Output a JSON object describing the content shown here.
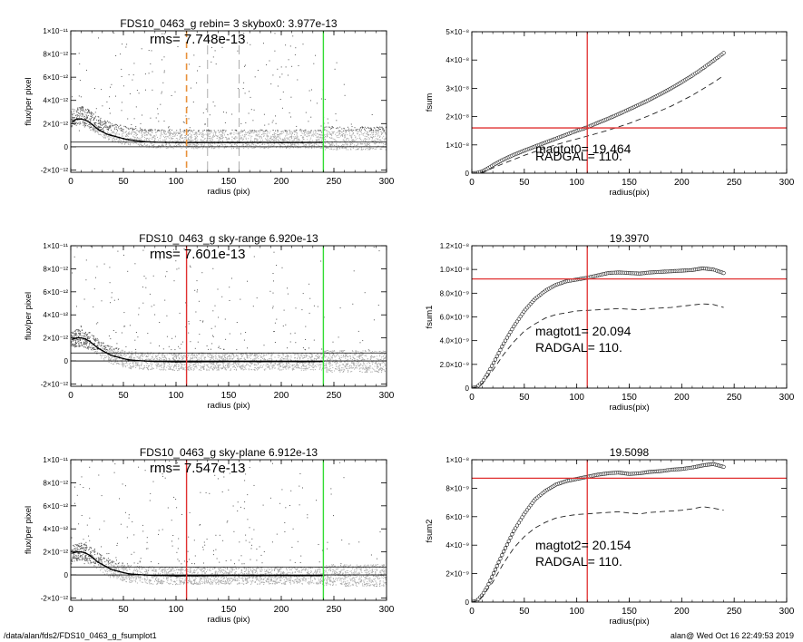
{
  "footer": {
    "left": "/data/alan/fds2/FDS10_0463_g_fsumplot1",
    "right": "alan@  Wed Oct 16 22:49:53 2019"
  },
  "chart_data": [
    {
      "id": "flux-top",
      "type": "scatter",
      "title": "FDS10_0463_g rebin= 3    skybox0:  3.977e-13",
      "annotation": "rms= 7.748e-13",
      "xlabel": "radius (pix)",
      "ylabel": "flux/per pixel",
      "xlim": [
        0,
        300
      ],
      "ylim": [
        -2.2e-12,
        1e-11
      ],
      "xticks": [
        0,
        50,
        100,
        150,
        200,
        250,
        300
      ],
      "xtick_labels": [
        "0",
        "50",
        "100",
        "150",
        "200",
        "250",
        "300"
      ],
      "yticks": [
        -2e-12,
        0,
        2e-12,
        4e-12,
        6e-12,
        8e-12,
        1e-11
      ],
      "ytick_labels": [
        "-2×10⁻¹²",
        "0",
        "2×10⁻¹²",
        "4×10⁻¹²",
        "6×10⁻¹²",
        "8×10⁻¹²",
        "1×10⁻¹¹"
      ],
      "hlines": [
        0,
        3.977e-13
      ],
      "vlines": [
        {
          "x": 110,
          "color": "#e8913a",
          "style": "dashed"
        },
        {
          "x": 130,
          "color": "#999999",
          "style": "dashed"
        },
        {
          "x": 160,
          "color": "#999999",
          "style": "dashed"
        },
        {
          "x": 240,
          "color": "#33dd33",
          "style": "solid"
        }
      ],
      "profile": {
        "x": [
          2,
          6,
          10,
          14,
          18,
          22,
          26,
          30,
          34,
          38,
          42,
          46,
          50,
          55,
          60,
          70,
          80,
          90,
          100,
          120,
          140,
          160,
          180,
          200,
          220,
          240
        ],
        "y": [
          2.2e-12,
          2.4e-12,
          2.4e-12,
          2.3e-12,
          2.1e-12,
          1.8e-12,
          1.5e-12,
          1.3e-12,
          1.1e-12,
          1e-12,
          9e-13,
          8e-13,
          7e-13,
          6e-13,
          5.5e-13,
          4.5e-13,
          4e-13,
          3.8e-13,
          3.7e-13,
          3.6e-13,
          3.7e-13,
          3.6e-13,
          3.8e-13,
          3.6e-13,
          3.7e-13,
          3.8e-13
        ]
      },
      "scatter": {
        "x_range": [
          0,
          300
        ],
        "dense_from": 240,
        "y_core": [
          -6e-13,
          1.4e-12
        ],
        "y_sparse_max": 1e-11
      }
    },
    {
      "id": "fsum-top",
      "type": "line",
      "title": "",
      "xlabel": "radius(pix)",
      "ylabel": "fsum",
      "xlim": [
        0,
        300
      ],
      "ylim": [
        0,
        5e-08
      ],
      "xticks": [
        0,
        50,
        100,
        150,
        200,
        250,
        300
      ],
      "xtick_labels": [
        "0",
        "50",
        "100",
        "150",
        "200",
        "250",
        "300"
      ],
      "yticks": [
        0,
        1e-08,
        2e-08,
        3e-08,
        4e-08,
        5e-08
      ],
      "ytick_labels": [
        "0",
        "1×10⁻⁸",
        "2×10⁻⁸",
        "3×10⁻⁸",
        "4×10⁻⁸",
        "5×10⁻⁸"
      ],
      "text": [
        "magtot0=  19.464",
        "RADGAL=    110."
      ],
      "crosshair": {
        "x": 110,
        "y": 1.6e-08,
        "color": "#e03030"
      },
      "series": [
        {
          "style": "markers",
          "x": [
            0,
            5,
            10,
            15,
            20,
            30,
            40,
            50,
            60,
            70,
            80,
            90,
            100,
            110,
            120,
            130,
            140,
            150,
            160,
            170,
            180,
            190,
            200,
            210,
            220,
            230,
            240
          ],
          "y": [
            0,
            1e-10,
            6e-10,
            1.6e-09,
            2.8e-09,
            4.8e-09,
            6.5e-09,
            8e-09,
            9.4e-09,
            1.08e-08,
            1.22e-08,
            1.36e-08,
            1.5e-08,
            1.62e-08,
            1.78e-08,
            1.93e-08,
            2.09e-08,
            2.26e-08,
            2.43e-08,
            2.61e-08,
            2.8e-08,
            3e-08,
            3.22e-08,
            3.45e-08,
            3.7e-08,
            3.97e-08,
            4.25e-08
          ]
        },
        {
          "style": "dashed",
          "x": [
            0,
            5,
            10,
            20,
            30,
            50,
            70,
            90,
            110,
            130,
            150,
            170,
            190,
            210,
            230,
            240
          ],
          "y": [
            0,
            1e-10,
            4e-10,
            1.8e-09,
            3.4e-09,
            6.3e-09,
            8.9e-09,
            1.11e-08,
            1.31e-08,
            1.52e-08,
            1.76e-08,
            2.05e-08,
            2.37e-08,
            2.75e-08,
            3.2e-08,
            3.45e-08
          ]
        }
      ]
    },
    {
      "id": "flux-mid",
      "type": "scatter",
      "title": "FDS10_0463_g sky-range  6.920e-13",
      "annotation": "rms= 7.601e-13",
      "xlabel": "radius (pix)",
      "ylabel": "flux/per pixel",
      "xlim": [
        0,
        300
      ],
      "ylim": [
        -2.2e-12,
        1e-11
      ],
      "xticks": [
        0,
        50,
        100,
        150,
        200,
        250,
        300
      ],
      "xtick_labels": [
        "0",
        "50",
        "100",
        "150",
        "200",
        "250",
        "300"
      ],
      "yticks": [
        -2e-12,
        0,
        2e-12,
        4e-12,
        6e-12,
        8e-12,
        1e-11
      ],
      "ytick_labels": [
        "-2×10⁻¹²",
        "0",
        "2×10⁻¹²",
        "4×10⁻¹²",
        "6×10⁻¹²",
        "8×10⁻¹²",
        "1×10⁻¹¹"
      ],
      "hlines": [
        0,
        6.92e-13
      ],
      "vlines": [
        {
          "x": 110,
          "color": "#e03030",
          "style": "solid"
        },
        {
          "x": 240,
          "color": "#33dd33",
          "style": "solid"
        }
      ],
      "profile": {
        "x": [
          2,
          6,
          10,
          14,
          18,
          22,
          26,
          30,
          34,
          38,
          42,
          46,
          50,
          55,
          60,
          70,
          80,
          90,
          100,
          120,
          140,
          160,
          180,
          200,
          220,
          240
        ],
        "y": [
          1.9e-12,
          2e-12,
          2e-12,
          1.9e-12,
          1.7e-12,
          1.4e-12,
          1.1e-12,
          9e-13,
          7e-13,
          5e-13,
          4e-13,
          3e-13,
          2e-13,
          1e-13,
          5e-14,
          0,
          -5e-14,
          -5e-14,
          -8e-14,
          -7e-14,
          -6e-14,
          -5e-14,
          -6e-14,
          -5e-14,
          -6e-14,
          -5e-14
        ]
      },
      "scatter": {
        "x_range": [
          0,
          300
        ],
        "dense_from": 240,
        "y_core": [
          -9e-13,
          1e-12
        ],
        "y_sparse_max": 1e-11
      }
    },
    {
      "id": "fsum-mid",
      "type": "line",
      "title": "19.3970",
      "xlabel": "radius(pix)",
      "ylabel": "fsum1",
      "xlim": [
        0,
        300
      ],
      "ylim": [
        0,
        1.2e-08
      ],
      "xticks": [
        0,
        50,
        100,
        150,
        200,
        250,
        300
      ],
      "xtick_labels": [
        "0",
        "50",
        "100",
        "150",
        "200",
        "250",
        "300"
      ],
      "yticks": [
        0,
        2e-09,
        4e-09,
        6e-09,
        8e-09,
        1e-08,
        1.2e-08
      ],
      "ytick_labels": [
        "0",
        "2.0×10⁻⁹",
        "4.0×10⁻⁹",
        "6.0×10⁻⁹",
        "8.0×10⁻⁹",
        "1.0×10⁻⁸",
        "1.2×10⁻⁸"
      ],
      "text": [
        "magtot1=  20.094",
        "RADGAL=    110."
      ],
      "crosshair": {
        "x": 110,
        "y": 9.2e-09,
        "color": "#e03030"
      },
      "series": [
        {
          "style": "markers",
          "x": [
            0,
            5,
            10,
            15,
            20,
            30,
            40,
            50,
            60,
            70,
            80,
            90,
            100,
            110,
            120,
            130,
            140,
            150,
            160,
            170,
            180,
            190,
            200,
            210,
            220,
            230,
            240
          ],
          "y": [
            0,
            1e-10,
            5e-10,
            1.2e-09,
            2e-09,
            3.7e-09,
            5.2e-09,
            6.5e-09,
            7.5e-09,
            8.2e-09,
            8.7e-09,
            9e-09,
            9.15e-09,
            9.3e-09,
            9.5e-09,
            9.7e-09,
            9.75e-09,
            9.7e-09,
            9.65e-09,
            9.75e-09,
            9.8e-09,
            9.85e-09,
            9.9e-09,
            9.95e-09,
            1.01e-08,
            1e-08,
            9.7e-09
          ]
        },
        {
          "style": "dashed",
          "x": [
            0,
            5,
            10,
            20,
            30,
            40,
            50,
            60,
            70,
            80,
            90,
            100,
            110,
            120,
            130,
            140,
            150,
            160,
            170,
            180,
            190,
            200,
            210,
            220,
            230,
            240
          ],
          "y": [
            0,
            1e-10,
            4e-10,
            1.5e-09,
            2.8e-09,
            3.9e-09,
            4.8e-09,
            5.4e-09,
            5.9e-09,
            6.2e-09,
            6.35e-09,
            6.5e-09,
            6.55e-09,
            6.6e-09,
            6.65e-09,
            6.7e-09,
            6.65e-09,
            6.6e-09,
            6.7e-09,
            6.75e-09,
            6.8e-09,
            6.9e-09,
            7e-09,
            7.1e-09,
            7.05e-09,
            6.8e-09
          ]
        }
      ]
    },
    {
      "id": "flux-bottom",
      "type": "scatter",
      "title": "FDS10_0463_g sky-plane  6.912e-13",
      "annotation": "rms= 7.547e-13",
      "xlabel": "radius (pix)",
      "ylabel": "flux/per pixel",
      "xlim": [
        0,
        300
      ],
      "ylim": [
        -2.2e-12,
        1e-11
      ],
      "xticks": [
        0,
        50,
        100,
        150,
        200,
        250,
        300
      ],
      "xtick_labels": [
        "0",
        "50",
        "100",
        "150",
        "200",
        "250",
        "300"
      ],
      "yticks": [
        -2e-12,
        0,
        2e-12,
        4e-12,
        6e-12,
        8e-12,
        1e-11
      ],
      "ytick_labels": [
        "-2×10⁻¹²",
        "0",
        "2×10⁻¹²",
        "4×10⁻¹²",
        "6×10⁻¹²",
        "8×10⁻¹²",
        "1×10⁻¹¹"
      ],
      "hlines": [
        0,
        6.912e-13
      ],
      "vlines": [
        {
          "x": 110,
          "color": "#e03030",
          "style": "solid"
        },
        {
          "x": 240,
          "color": "#33dd33",
          "style": "solid"
        }
      ],
      "profile": {
        "x": [
          2,
          6,
          10,
          14,
          18,
          22,
          26,
          30,
          34,
          38,
          42,
          46,
          50,
          55,
          60,
          70,
          80,
          90,
          100,
          120,
          140,
          160,
          180,
          200,
          220,
          240
        ],
        "y": [
          1.9e-12,
          2e-12,
          2e-12,
          1.9e-12,
          1.7e-12,
          1.4e-12,
          1.1e-12,
          9e-13,
          7e-13,
          5e-13,
          4e-13,
          3e-13,
          2e-13,
          1e-13,
          5e-14,
          0,
          -5e-14,
          -5e-14,
          -8e-14,
          -7e-14,
          -6e-14,
          -5e-14,
          -6e-14,
          -5e-14,
          -6e-14,
          -5e-14
        ]
      },
      "scatter": {
        "x_range": [
          0,
          300
        ],
        "dense_from": 240,
        "y_core": [
          -9e-13,
          1e-12
        ],
        "y_sparse_max": 1e-11
      }
    },
    {
      "id": "fsum-bottom",
      "type": "line",
      "title": "19.5098",
      "xlabel": "radius(pix)",
      "ylabel": "fsum2",
      "xlim": [
        0,
        300
      ],
      "ylim": [
        0,
        1e-08
      ],
      "xticks": [
        0,
        50,
        100,
        150,
        200,
        250,
        300
      ],
      "xtick_labels": [
        "0",
        "50",
        "100",
        "150",
        "200",
        "250",
        "300"
      ],
      "yticks": [
        0,
        2e-09,
        4e-09,
        6e-09,
        8e-09,
        1e-08
      ],
      "ytick_labels": [
        "0",
        "2×10⁻⁹",
        "4×10⁻⁹",
        "6×10⁻⁹",
        "8×10⁻⁹",
        "1×10⁻⁸"
      ],
      "text": [
        "magtot2=  20.154",
        "RADGAL=    110."
      ],
      "crosshair": {
        "x": 110,
        "y": 8.7e-09,
        "color": "#e03030"
      },
      "series": [
        {
          "style": "markers",
          "x": [
            0,
            5,
            10,
            15,
            20,
            30,
            40,
            50,
            60,
            70,
            80,
            90,
            100,
            110,
            120,
            130,
            140,
            150,
            160,
            170,
            180,
            190,
            200,
            210,
            220,
            230,
            240
          ],
          "y": [
            0,
            1e-10,
            5e-10,
            1.1e-09,
            1.9e-09,
            3.5e-09,
            5e-09,
            6.2e-09,
            7.2e-09,
            7.8e-09,
            8.25e-09,
            8.5e-09,
            8.65e-09,
            8.8e-09,
            8.95e-09,
            9.05e-09,
            9.1e-09,
            9e-09,
            9.05e-09,
            9.15e-09,
            9.2e-09,
            9.3e-09,
            9.35e-09,
            9.45e-09,
            9.6e-09,
            9.7e-09,
            9.5e-09
          ]
        },
        {
          "style": "dashed",
          "x": [
            0,
            5,
            10,
            20,
            30,
            40,
            50,
            60,
            70,
            80,
            90,
            100,
            110,
            120,
            130,
            140,
            150,
            160,
            170,
            180,
            190,
            200,
            210,
            220,
            230,
            240
          ],
          "y": [
            0,
            1e-10,
            4e-10,
            1.4e-09,
            2.7e-09,
            3.8e-09,
            4.6e-09,
            5.2e-09,
            5.6e-09,
            5.9e-09,
            6.05e-09,
            6.15e-09,
            6.2e-09,
            6.25e-09,
            6.3e-09,
            6.35e-09,
            6.25e-09,
            6.2e-09,
            6.3e-09,
            6.35e-09,
            6.4e-09,
            6.45e-09,
            6.55e-09,
            6.7e-09,
            6.6e-09,
            6.45e-09
          ]
        }
      ]
    }
  ]
}
